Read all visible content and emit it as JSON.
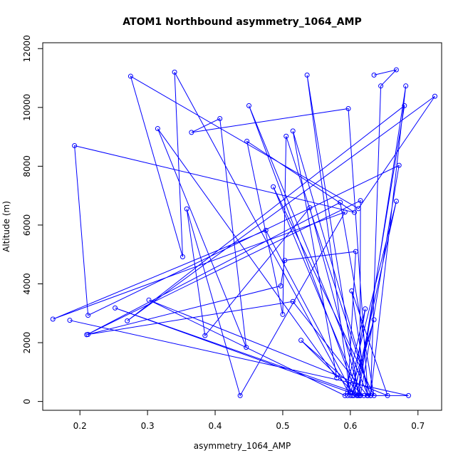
{
  "chart_data": {
    "type": "line",
    "title": "ATOM1 Northbound asymmetry_1064_AMP",
    "xlabel": "asymmetry_1064_AMP",
    "ylabel": "Altitude (m)",
    "xlim": [
      0.145,
      0.735
    ],
    "ylim": [
      -300,
      12200
    ],
    "xticks": [
      0.2,
      0.3,
      0.4,
      0.5,
      0.6,
      0.7
    ],
    "yticks": [
      0,
      2000,
      4000,
      6000,
      8000,
      10000,
      12000
    ],
    "grid": false,
    "marker": "open-circle",
    "series_color": "#0000ff",
    "series": [
      {
        "points": [
          [
            0.635,
            11100
          ],
          [
            0.668,
            11280
          ],
          [
            0.645,
            10730
          ],
          [
            0.63,
            200
          ],
          [
            0.682,
            10730
          ],
          [
            0.612,
            200
          ],
          [
            0.536,
            11100
          ],
          [
            0.6,
            200
          ],
          [
            0.34,
            11200
          ],
          [
            0.352,
            4920
          ],
          [
            0.275,
            11060
          ],
          [
            0.612,
            6560
          ],
          [
            0.725,
            10380
          ],
          [
            0.27,
            2740
          ],
          [
            0.68,
            10060
          ],
          [
            0.61,
            200
          ],
          [
            0.45,
            10060
          ],
          [
            0.626,
            200
          ],
          [
            0.597,
            9960
          ],
          [
            0.365,
            9150
          ],
          [
            0.407,
            9620
          ],
          [
            0.446,
            1840
          ],
          [
            0.315,
            9280
          ],
          [
            0.58,
            800
          ],
          [
            0.515,
            9200
          ],
          [
            0.63,
            200
          ],
          [
            0.505,
            9020
          ],
          [
            0.5,
            2960
          ],
          [
            0.447,
            8850
          ],
          [
            0.606,
            6430
          ],
          [
            0.192,
            8700
          ],
          [
            0.212,
            2930
          ],
          [
            0.672,
            8030
          ],
          [
            0.615,
            200
          ],
          [
            0.486,
            7300
          ],
          [
            0.635,
            200
          ],
          [
            0.585,
            6770
          ],
          [
            0.21,
            2270
          ],
          [
            0.615,
            6830
          ],
          [
            0.614,
            200
          ],
          [
            0.54,
            6590
          ],
          [
            0.385,
            2240
          ],
          [
            0.358,
            6550
          ],
          [
            0.437,
            200
          ],
          [
            0.592,
            6440
          ],
          [
            0.16,
            2800
          ],
          [
            0.475,
            5820
          ],
          [
            0.605,
            200
          ],
          [
            0.668,
            6810
          ],
          [
            0.596,
            200
          ],
          [
            0.608,
            5100
          ],
          [
            0.503,
            4800
          ],
          [
            0.497,
            3930
          ],
          [
            0.212,
            2280
          ],
          [
            0.515,
            3400
          ],
          [
            0.625,
            200
          ],
          [
            0.602,
            3760
          ],
          [
            0.655,
            200
          ],
          [
            0.302,
            3450
          ],
          [
            0.592,
            200
          ],
          [
            0.622,
            3150
          ],
          [
            0.603,
            200
          ],
          [
            0.635,
            2780
          ],
          [
            0.6,
            300
          ],
          [
            0.252,
            3180
          ],
          [
            0.62,
            200
          ],
          [
            0.527,
            2080
          ],
          [
            0.61,
            200
          ],
          [
            0.686,
            200
          ],
          [
            0.185,
            2760
          ]
        ]
      }
    ]
  }
}
